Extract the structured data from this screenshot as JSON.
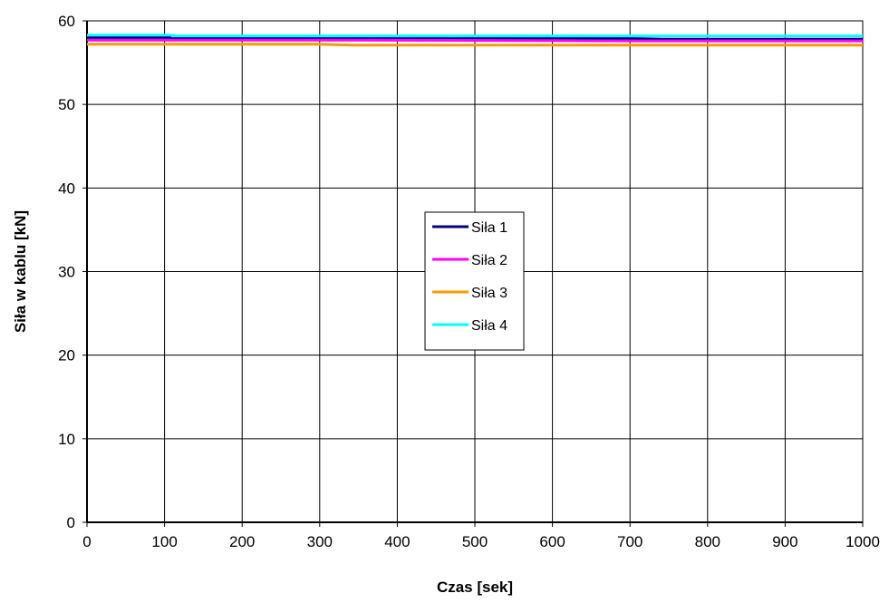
{
  "chart_data": {
    "type": "line",
    "title": "",
    "xlabel": "Czas [sek]",
    "ylabel": "Siła w kablu [kN]",
    "xlim": [
      0,
      1000
    ],
    "ylim": [
      0,
      60
    ],
    "x_ticks": [
      "0",
      "100",
      "200",
      "300",
      "400",
      "500",
      "600",
      "700",
      "800",
      "900",
      "1000"
    ],
    "y_ticks": [
      "0",
      "10",
      "20",
      "30",
      "40",
      "50",
      "60"
    ],
    "grid": true,
    "legend_position": "center",
    "series": [
      {
        "name": "Siła 1",
        "color": "#000080",
        "points": [
          [
            0,
            58.0
          ],
          [
            110,
            58.0
          ],
          [
            110,
            57.9
          ],
          [
            700,
            57.9
          ],
          [
            740,
            57.8
          ],
          [
            1000,
            57.8
          ]
        ]
      },
      {
        "name": "Siła 2",
        "color": "#ff00ff",
        "points": [
          [
            0,
            57.7
          ],
          [
            350,
            57.7
          ],
          [
            700,
            57.6
          ],
          [
            1000,
            57.6
          ]
        ]
      },
      {
        "name": "Siła 3",
        "color": "#ff9900",
        "points": [
          [
            0,
            57.2
          ],
          [
            300,
            57.2
          ],
          [
            340,
            57.1
          ],
          [
            1000,
            57.1
          ]
        ]
      },
      {
        "name": "Siła 4",
        "color": "#00ffff",
        "points": [
          [
            0,
            58.3
          ],
          [
            110,
            58.3
          ],
          [
            110,
            58.2
          ],
          [
            1000,
            58.2
          ]
        ]
      }
    ]
  }
}
